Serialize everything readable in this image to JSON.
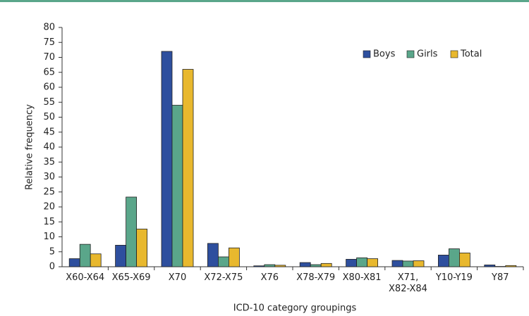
{
  "chart_data": {
    "type": "bar",
    "x_label": "ICD-10 category groupings",
    "y_label": "Relative frequency",
    "categories": [
      "X60-X64",
      "X65-X69",
      "X70",
      "X72-X75",
      "X76",
      "X78-X79",
      "X80-X81",
      "X71, X82-X84",
      "Y10-Y19",
      "Y87"
    ],
    "series": [
      {
        "name": "Boys",
        "color": "#2e4f9e",
        "values": [
          2.7,
          7.2,
          72,
          7.8,
          0.3,
          1.4,
          2.5,
          2.1,
          3.9,
          0.6
        ]
      },
      {
        "name": "Girls",
        "color": "#5aa68a",
        "values": [
          7.5,
          23.3,
          54,
          3.3,
          0.7,
          0.7,
          3.0,
          1.9,
          6.0,
          0.1
        ]
      },
      {
        "name": "Total",
        "color": "#e8b82e",
        "values": [
          4.3,
          12.6,
          66,
          6.3,
          0.5,
          1.1,
          2.7,
          2.0,
          4.6,
          0.4
        ]
      }
    ],
    "ylim": [
      0,
      80
    ],
    "yticks": [
      0,
      5,
      10,
      15,
      20,
      25,
      30,
      35,
      40,
      45,
      50,
      55,
      60,
      65,
      70,
      75,
      80
    ],
    "grid": false,
    "legend": "top-right"
  }
}
